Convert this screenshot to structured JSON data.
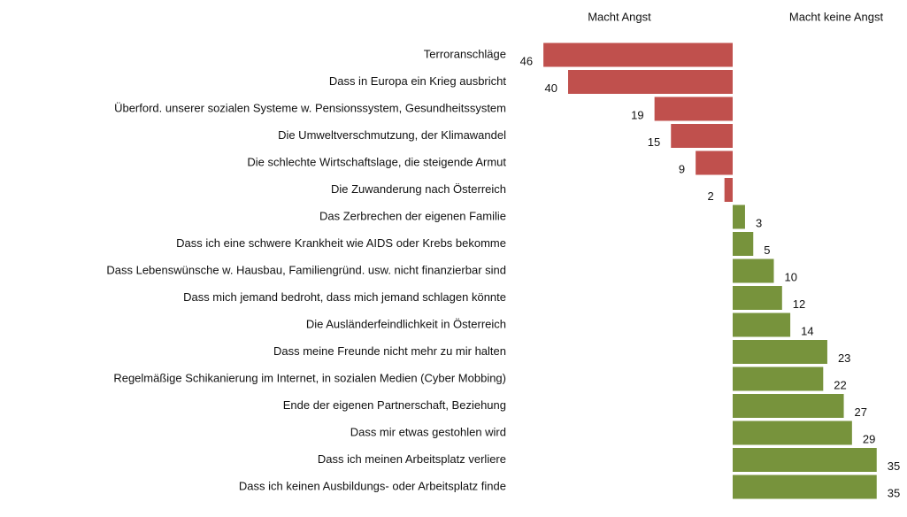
{
  "chart_data": {
    "type": "diverging-bar",
    "categories": [
      "Terroranschläge",
      "Dass in Europa ein Krieg ausbricht",
      "Überford. unserer sozialen Systeme w. Pensionssystem, Gesundheitssystem",
      "Die Umweltverschmutzung, der Klimawandel",
      "Die schlechte Wirtschaftslage, die steigende Armut",
      "Die Zuwanderung nach Österreich",
      "Das Zerbrechen der eigenen Familie",
      "Dass ich eine schwere Krankheit wie AIDS oder Krebs bekomme",
      "Dass Lebenswünsche w. Hausbau, Familiengründ. usw. nicht finanzierbar sind",
      "Dass mich jemand bedroht, dass mich jemand schlagen könnte",
      "Die Ausländerfeindlichkeit in Österreich",
      "Dass meine Freunde nicht mehr zu mir halten",
      "Regelmäßige Schikanierung im Internet, in sozialen Medien (Cyber Mobbing)",
      "Ende der eigenen Partnerschaft, Beziehung",
      "Dass mir etwas gestohlen wird",
      "Dass ich meinen Arbeitsplatz verliere",
      "Dass ich keinen Ausbildungs- oder Arbeitsplatz finde"
    ],
    "series": [
      {
        "name": "Macht Angst",
        "color": "#c0504d",
        "direction": "left",
        "values": [
          46,
          40,
          19,
          15,
          9,
          2,
          null,
          null,
          null,
          null,
          null,
          null,
          null,
          null,
          null,
          null,
          null
        ]
      },
      {
        "name": "Macht keine Angst",
        "color": "#77933c",
        "direction": "right",
        "values": [
          null,
          null,
          null,
          null,
          null,
          null,
          3,
          5,
          10,
          12,
          14,
          23,
          22,
          27,
          29,
          35,
          35
        ]
      }
    ]
  }
}
